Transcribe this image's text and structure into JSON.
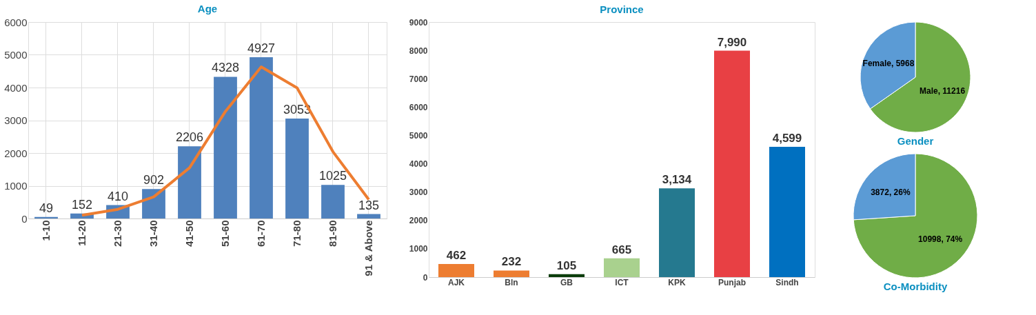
{
  "chart_data": [
    {
      "type": "bar",
      "title": "Age",
      "categories": [
        "1-10",
        "11-20",
        "21-30",
        "31-40",
        "41-50",
        "51-60",
        "61-70",
        "71-80",
        "81-90",
        "91 & Above"
      ],
      "series": [
        {
          "type": "bar",
          "color": "#4f81bd",
          "values": [
            49,
            152,
            410,
            902,
            2206,
            4328,
            4927,
            3053,
            1025,
            135
          ],
          "value_labels": [
            "49",
            "152",
            "410",
            "902",
            "2206",
            "4328",
            "4927",
            "3053",
            "1025",
            "135"
          ]
        },
        {
          "type": "line",
          "color": "#ed7d31",
          "values": [
            null,
            100,
            280,
            660,
            1550,
            3270,
            4630,
            3990,
            2040,
            580
          ]
        }
      ],
      "ylim": [
        0,
        6000
      ],
      "yticks": [
        0,
        1000,
        2000,
        3000,
        4000,
        5000,
        6000
      ],
      "grid": true
    },
    {
      "type": "bar",
      "title": "Province",
      "categories": [
        "AJK",
        "Bln",
        "GB",
        "ICT",
        "KPK",
        "Punjab",
        "Sindh"
      ],
      "values": [
        462,
        232,
        105,
        665,
        3134,
        7990,
        4599
      ],
      "colors": [
        "#ed7d31",
        "#ed7d31",
        "#0b3d0b",
        "#a9d18e",
        "#25798f",
        "#e84044",
        "#0070c0"
      ],
      "value_labels": [
        "462",
        "232",
        "105",
        "665",
        "3,134",
        "7,990",
        "4,599"
      ],
      "ylim": [
        0,
        9000
      ],
      "yticks": [
        0,
        1000,
        2000,
        3000,
        4000,
        5000,
        6000,
        7000,
        8000,
        9000
      ],
      "grid": false
    },
    {
      "type": "pie",
      "title": "Gender",
      "categories": [
        null,
        null
      ],
      "values": [
        11216,
        5968
      ],
      "colors": [
        "#70ad47",
        "#5b9bd5"
      ],
      "value_labels": [
        "Male, 11216",
        "Female, 5968"
      ]
    },
    {
      "type": "pie",
      "title": "Co-Morbidity",
      "categories": [
        null,
        null
      ],
      "values": [
        10998,
        3872
      ],
      "colors": [
        "#70ad47",
        "#5b9bd5"
      ],
      "value_labels": [
        "10998, 74%",
        "3872, 26%"
      ]
    }
  ]
}
